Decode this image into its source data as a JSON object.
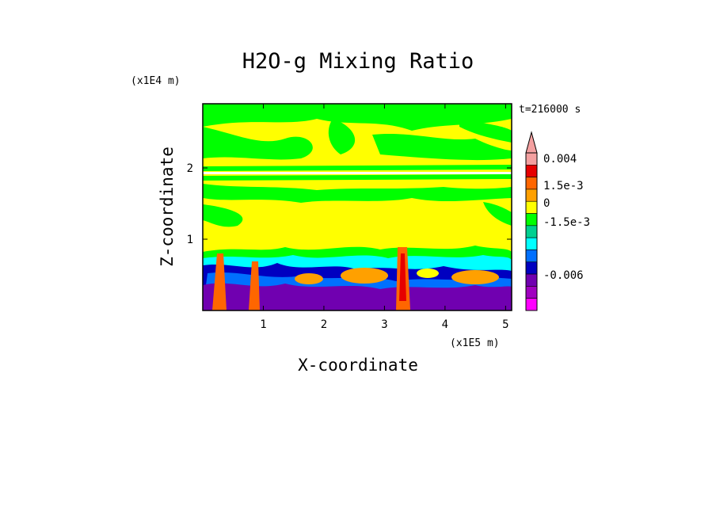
{
  "chart_data": {
    "type": "heatmap",
    "title": "H2O-g Mixing Ratio",
    "xlabel": "X-coordinate",
    "ylabel": "Z-coordinate",
    "x_scale_label": "(x1E5 m)",
    "y_scale_label": "(x1E4 m)",
    "time_label": "t=216000 s",
    "xlim": [
      0,
      5.1
    ],
    "ylim": [
      0,
      2.9
    ],
    "x_ticks": [
      "1",
      "2",
      "3",
      "4",
      "5"
    ],
    "y_ticks": [
      "1",
      "2"
    ],
    "colorbar": {
      "labels": [
        "0.004",
        "1.5e-3",
        "0",
        "-1.5e-3",
        "-0.006"
      ],
      "label_values": [
        0.004,
        0.0015,
        0,
        -0.0015,
        -0.006
      ],
      "levels": [
        {
          "color": "#f4a0a0"
        },
        {
          "color": "#e60000"
        },
        {
          "color": "#ff6600"
        },
        {
          "color": "#ffa000"
        },
        {
          "color": "#ffff00"
        },
        {
          "color": "#00ff00"
        },
        {
          "color": "#00d090"
        },
        {
          "color": "#00ffff"
        },
        {
          "color": "#0070ff"
        },
        {
          "color": "#0000c0"
        },
        {
          "color": "#7000b0"
        },
        {
          "color": "#a000c0"
        },
        {
          "color": "#ff00ff"
        }
      ]
    }
  }
}
